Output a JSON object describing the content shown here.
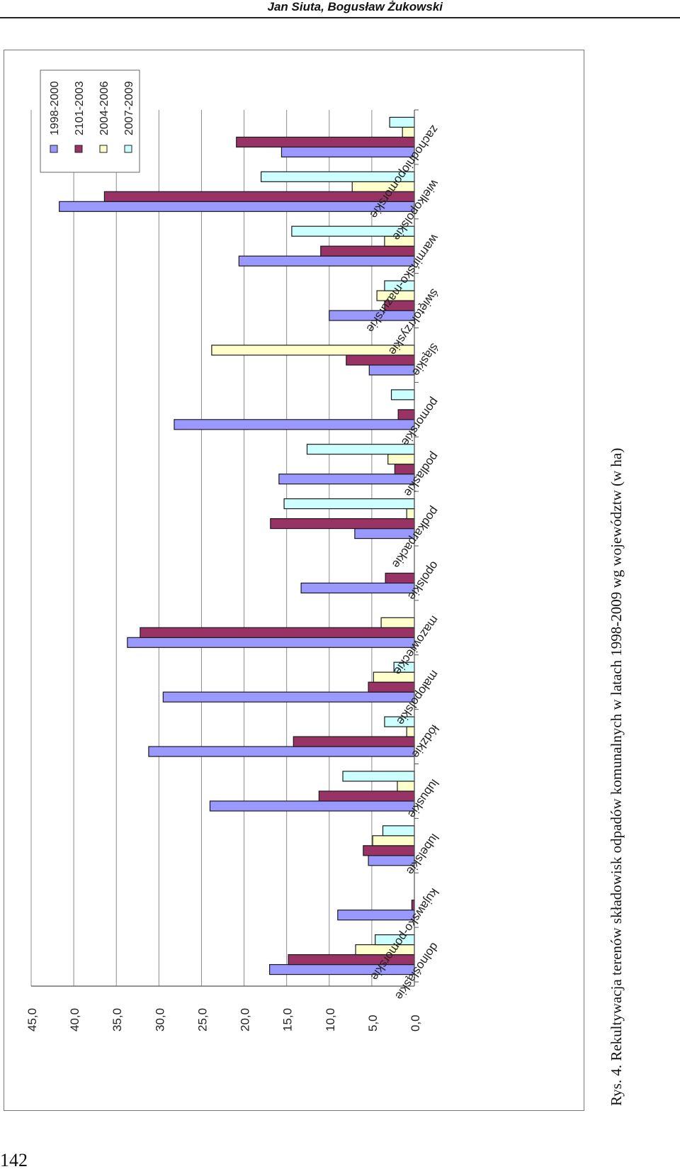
{
  "header": {
    "authors": "Jan Siuta, Bogusław Żukowski"
  },
  "page_number": "142",
  "caption": "Rys. 4. Rekultywacja terenów składowisk odpadów komunalnych w latach 1998-2009 wg województw (w ha)",
  "colors": {
    "series": [
      "#9999ff",
      "#993366",
      "#ffffcc",
      "#ccffff"
    ],
    "grid": "#8c8c8c",
    "bar_stroke": "#1a1a1a"
  },
  "chart_data": {
    "type": "bar",
    "orientation": "horizontal (page rotated 90°)",
    "title": "",
    "xlabel": "",
    "ylabel": "",
    "ylim": [
      0,
      45
    ],
    "grid": true,
    "legend_position": "top-right (rotated)",
    "tick_labels": [
      "0,0",
      "5,0",
      "10,0",
      "15,0",
      "20,0",
      "25,0",
      "30,0",
      "35,0",
      "40,0",
      "45,0"
    ],
    "categories": [
      "dolnośląskie",
      "kujawsko-pomorskie",
      "lubelskie",
      "lubuskie",
      "łódzkie",
      "małopolskie",
      "mazowieckie",
      "opolskie",
      "podkarpackie",
      "podlaskie",
      "pomorskie",
      "śląskie",
      "świętokrzyskie",
      "warmińsko-mazurskie",
      "wielkopolskie",
      "zachodniopomorskie"
    ],
    "series": [
      {
        "name": "1998-2000",
        "values": [
          17.0,
          9.0,
          5.4,
          24.0,
          31.2,
          29.5,
          33.7,
          13.3,
          7.0,
          15.9,
          28.2,
          5.3,
          10.0,
          20.6,
          41.7,
          15.6
        ]
      },
      {
        "name": "2101-2003",
        "values": [
          14.8,
          0.3,
          6.0,
          11.2,
          14.2,
          5.4,
          32.2,
          3.4,
          16.9,
          2.3,
          1.9,
          8.0,
          3.5,
          11.0,
          36.4,
          20.9
        ]
      },
      {
        "name": "2004-2006",
        "values": [
          6.9,
          0.0,
          4.9,
          2.0,
          0.9,
          4.8,
          3.9,
          0.0,
          0.9,
          3.1,
          0.0,
          23.8,
          4.4,
          3.5,
          7.3,
          1.4
        ]
      },
      {
        "name": "2007-2009",
        "values": [
          4.6,
          0.0,
          3.7,
          8.4,
          3.5,
          2.4,
          0.0,
          0.0,
          15.3,
          12.6,
          2.7,
          0.0,
          3.5,
          14.4,
          18.0,
          2.9
        ]
      }
    ]
  }
}
